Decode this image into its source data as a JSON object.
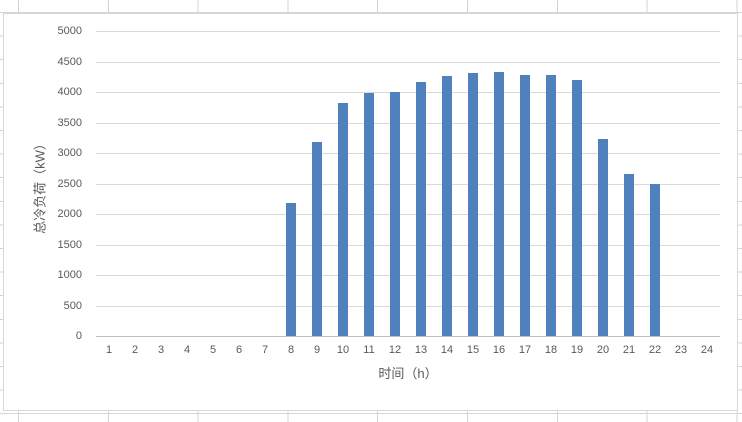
{
  "chart_data": {
    "type": "bar",
    "title": "",
    "xlabel": "时间（h）",
    "ylabel": "总冷负荷（kW）",
    "x_tick_labels": [
      "1",
      "2",
      "3",
      "4",
      "5",
      "6",
      "7",
      "8",
      "9",
      "10",
      "11",
      "12",
      "13",
      "14",
      "15",
      "16",
      "17",
      "18",
      "19",
      "20",
      "21",
      "22",
      "23",
      "24"
    ],
    "y_tick_labels": [
      "0",
      "500",
      "1000",
      "1500",
      "2000",
      "2500",
      "3000",
      "3500",
      "4000",
      "4500",
      "5000"
    ],
    "x": [
      8,
      9,
      10,
      11,
      12,
      13,
      14,
      15,
      16,
      17,
      18,
      19,
      20,
      21,
      22
    ],
    "values": [
      2180,
      3180,
      3820,
      3980,
      4000,
      4160,
      4270,
      4310,
      4330,
      4280,
      4280,
      4200,
      3230,
      2660,
      2490
    ],
    "ylim": [
      0,
      5000
    ],
    "ytick_step": 500,
    "x_slots": 24,
    "grid": true,
    "legend": false,
    "bar_color": "#4F81BD",
    "gridline_color": "#D9D9D9",
    "axis_line_color": "#BFBFBF",
    "label_color": "#595959",
    "chart_background": "#FFFFFF",
    "chart_border_color": "#D7D7D7",
    "spreadsheet_gridline_color": "#D4D4D4"
  }
}
